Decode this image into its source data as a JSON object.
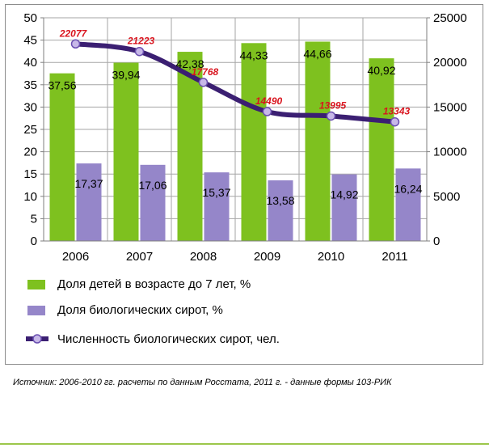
{
  "chart_data": {
    "type": "bar",
    "categories": [
      "2006",
      "2007",
      "2008",
      "2009",
      "2010",
      "2011"
    ],
    "series": [
      {
        "name": "Доля детей в возрасте до 7 лет, %",
        "type": "bar",
        "axis": "left",
        "color": "#7ec11f",
        "values": [
          37.56,
          39.94,
          42.38,
          44.33,
          44.66,
          40.92
        ],
        "labels": [
          "37,56",
          "39,94",
          "42,38",
          "44,33",
          "44,66",
          "40,92"
        ]
      },
      {
        "name": "Доля биологических сирот, %",
        "type": "bar",
        "axis": "left",
        "color": "#9586c9",
        "values": [
          17.37,
          17.06,
          15.37,
          13.58,
          14.92,
          16.24
        ],
        "labels": [
          "17,37",
          "17,06",
          "15,37",
          "13,58",
          "14,92",
          "16,24"
        ]
      },
      {
        "name": "Численность биологических сирот, чел.",
        "type": "line",
        "axis": "right",
        "color": "#3b1f72",
        "values": [
          22077,
          21223,
          17768,
          14490,
          13995,
          13343
        ],
        "labels": [
          "22077",
          "21223",
          "17768",
          "14490",
          "13995",
          "13343"
        ]
      }
    ],
    "left_axis": {
      "ylim": [
        0,
        50
      ],
      "ticks": [
        "0",
        "5",
        "10",
        "15",
        "20",
        "25",
        "30",
        "35",
        "40",
        "45",
        "50"
      ]
    },
    "right_axis": {
      "ylim": [
        0,
        25000
      ],
      "ticks": [
        "0",
        "5000",
        "10000",
        "15000",
        "20000",
        "25000"
      ]
    },
    "grid": true,
    "legend_position": "bottom",
    "title": "",
    "xlabel": "",
    "ylabel": ""
  },
  "source_note": "Источник: 2006-2010 гг. расчеты по данным Росстата, 2011 г. - данные формы 103-РИК"
}
